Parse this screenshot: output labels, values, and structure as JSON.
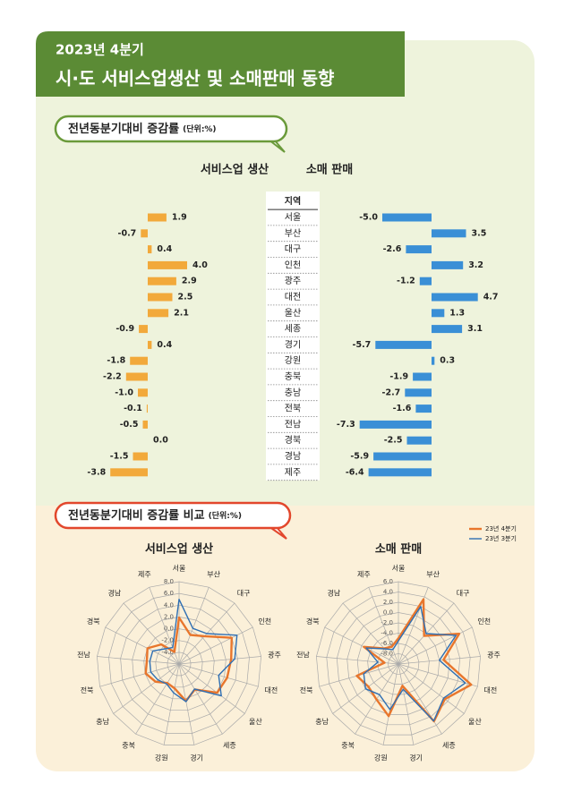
{
  "header": {
    "period": "2023년 4분기",
    "title": "시·도 서비스업생산 및 소매판매 동향"
  },
  "section1": {
    "label": "전년동분기대비 증감률",
    "unit": "(단위:%)"
  },
  "section2": {
    "label": "전년동분기대비 증감률 비교",
    "unit": "(단위:%)"
  },
  "chart_data": [
    {
      "type": "butterfly",
      "category_header": "지역",
      "categories": [
        "서울",
        "부산",
        "대구",
        "인천",
        "광주",
        "대전",
        "울산",
        "세종",
        "경기",
        "강원",
        "충북",
        "충남",
        "전북",
        "전남",
        "경북",
        "경남",
        "제주"
      ],
      "series": [
        {
          "name": "서비스업 생산",
          "color": "#f2a93b",
          "values": [
            1.9,
            -0.7,
            0.4,
            4.0,
            2.9,
            2.5,
            2.1,
            -0.9,
            0.4,
            -1.8,
            -2.2,
            -1.0,
            -0.1,
            -0.5,
            0.0,
            -1.5,
            -3.8
          ],
          "value_labels": [
            "1.9",
            "-0.7",
            "0.4",
            "4.0",
            "2.9",
            "2.5",
            "2.1",
            "-0.9",
            "0.4",
            "-1.8",
            "-2.2",
            "-1.0",
            "-0.1",
            "-0.5",
            "0.0",
            "-1.5",
            "-3.8"
          ]
        },
        {
          "name": "소매 판매",
          "color": "#3a8fd6",
          "values": [
            -5.0,
            3.5,
            -2.6,
            3.2,
            -1.2,
            4.7,
            1.3,
            3.1,
            -5.7,
            0.3,
            -1.9,
            -2.7,
            -1.6,
            -7.3,
            -2.5,
            -5.9,
            -6.4
          ],
          "value_labels": [
            "-5.0",
            "3.5",
            "-2.6",
            "3.2",
            "-1.2",
            "4.7",
            "1.3",
            "3.1",
            "-5.7",
            "0.3",
            "-1.9",
            "-2.7",
            "-1.6",
            "-7.3",
            "-2.5",
            "-5.9",
            "-6.4"
          ]
        }
      ]
    },
    {
      "type": "radar",
      "title": "서비스업 생산",
      "categories": [
        "서울",
        "부산",
        "대구",
        "인천",
        "광주",
        "대전",
        "울산",
        "세종",
        "경기",
        "강원",
        "충북",
        "충남",
        "전북",
        "전남",
        "경북",
        "경남",
        "제주"
      ],
      "rlim": [
        -6,
        8
      ],
      "rticks": [
        {
          "value": 8,
          "label": "8.0"
        },
        {
          "value": 6,
          "label": "6.0"
        },
        {
          "value": 4,
          "label": "4.0"
        },
        {
          "value": 2,
          "label": "2.0"
        },
        {
          "value": 0,
          "label": "0.0"
        },
        {
          "value": -2,
          "label": "-2.0"
        },
        {
          "value": -4,
          "label": "-4.0"
        }
      ],
      "series": [
        {
          "name": "23년 4분기",
          "color": "#e8762c",
          "values": [
            1.9,
            -0.7,
            0.4,
            4.0,
            2.9,
            2.5,
            2.1,
            -0.9,
            0.4,
            -1.8,
            -2.2,
            -1.0,
            -0.1,
            -0.5,
            0.0,
            -1.5,
            -3.8
          ]
        },
        {
          "name": "23년 3분기",
          "color": "#2f6fb3",
          "values": [
            5.0,
            0.5,
            1.0,
            5.0,
            3.5,
            1.0,
            3.0,
            -1.0,
            0.5,
            -1.0,
            -2.0,
            -1.5,
            -1.0,
            -1.0,
            -1.0,
            -2.5,
            -3.0
          ]
        }
      ]
    },
    {
      "type": "radar",
      "title": "소매 판매",
      "categories": [
        "서울",
        "부산",
        "대구",
        "인천",
        "광주",
        "대전",
        "울산",
        "세종",
        "경기",
        "강원",
        "충북",
        "충남",
        "전북",
        "전남",
        "경북",
        "경남",
        "제주"
      ],
      "rlim": [
        -10,
        6
      ],
      "rticks": [
        {
          "value": 6,
          "label": "6.0"
        },
        {
          "value": 4,
          "label": "4.0"
        },
        {
          "value": 2,
          "label": "2.0"
        },
        {
          "value": 0,
          "label": "0.0"
        },
        {
          "value": -2,
          "label": "-2.0"
        },
        {
          "value": -4,
          "label": "-4.0"
        },
        {
          "value": -6,
          "label": "-6.0"
        },
        {
          "value": -8,
          "label": "-8.0"
        }
      ],
      "series": [
        {
          "color": "#e8762c",
          "values": [
            -5.0,
            3.5,
            -2.6,
            3.2,
            -1.2,
            4.7,
            1.3,
            3.1,
            -5.7,
            0.3,
            -1.9,
            -2.7,
            -1.6,
            -7.3,
            -2.5,
            -5.9,
            -6.4
          ]
        },
        {
          "color": "#2f6fb3",
          "values": [
            -5.5,
            2.0,
            -2.0,
            2.5,
            -2.0,
            3.5,
            1.0,
            3.0,
            -5.0,
            -1.0,
            -3.0,
            -2.0,
            -3.0,
            -6.0,
            -3.0,
            -6.0,
            -7.0
          ]
        }
      ]
    }
  ]
}
